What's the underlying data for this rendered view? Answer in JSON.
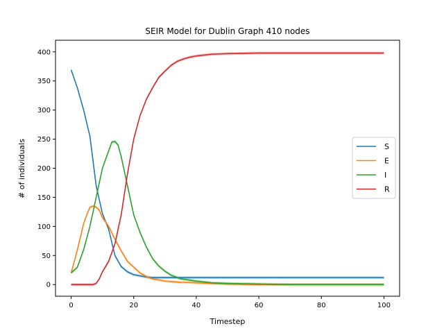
{
  "chart_data": {
    "type": "line",
    "title": "SEIR Model for Dublin Graph 410 nodes",
    "xlabel": "Timestep",
    "ylabel": "# of individuals",
    "xlim": [
      -5,
      105
    ],
    "ylim": [
      -20,
      420
    ],
    "xticks": [
      0,
      20,
      40,
      60,
      80,
      100
    ],
    "yticks": [
      0,
      50,
      100,
      150,
      200,
      250,
      300,
      350,
      400
    ],
    "grid": false,
    "legend_position": "center-right",
    "series": [
      {
        "name": "S",
        "color": "#1f77b4",
        "points": [
          [
            0,
            369
          ],
          [
            2,
            338
          ],
          [
            4,
            300
          ],
          [
            6,
            255
          ],
          [
            8,
            170
          ],
          [
            10,
            122
          ],
          [
            12,
            95
          ],
          [
            14,
            50
          ],
          [
            16,
            31
          ],
          [
            18,
            22
          ],
          [
            20,
            17
          ],
          [
            22,
            15
          ],
          [
            24,
            13
          ],
          [
            26,
            12
          ],
          [
            30,
            12
          ],
          [
            40,
            12
          ],
          [
            50,
            12
          ],
          [
            60,
            12
          ],
          [
            70,
            12
          ],
          [
            80,
            12
          ],
          [
            90,
            12
          ],
          [
            100,
            12
          ]
        ]
      },
      {
        "name": "E",
        "color": "#ff7f0e",
        "points": [
          [
            0,
            20
          ],
          [
            2,
            60
          ],
          [
            4,
            105
          ],
          [
            5,
            120
          ],
          [
            6,
            133
          ],
          [
            7,
            135
          ],
          [
            8,
            133
          ],
          [
            9,
            128
          ],
          [
            10,
            115
          ],
          [
            12,
            100
          ],
          [
            14,
            78
          ],
          [
            16,
            58
          ],
          [
            18,
            40
          ],
          [
            20,
            30
          ],
          [
            22,
            20
          ],
          [
            24,
            14
          ],
          [
            26,
            10
          ],
          [
            28,
            8
          ],
          [
            30,
            6
          ],
          [
            35,
            4
          ],
          [
            40,
            3
          ],
          [
            45,
            2
          ],
          [
            50,
            1
          ],
          [
            60,
            0
          ],
          [
            80,
            0
          ],
          [
            100,
            0
          ]
        ]
      },
      {
        "name": "I",
        "color": "#2ca02c",
        "points": [
          [
            0,
            20
          ],
          [
            2,
            30
          ],
          [
            4,
            60
          ],
          [
            6,
            100
          ],
          [
            8,
            150
          ],
          [
            10,
            200
          ],
          [
            12,
            230
          ],
          [
            13,
            245
          ],
          [
            14,
            246
          ],
          [
            15,
            240
          ],
          [
            16,
            220
          ],
          [
            18,
            170
          ],
          [
            20,
            120
          ],
          [
            22,
            90
          ],
          [
            24,
            65
          ],
          [
            26,
            45
          ],
          [
            28,
            32
          ],
          [
            30,
            23
          ],
          [
            32,
            16
          ],
          [
            35,
            10
          ],
          [
            40,
            6
          ],
          [
            45,
            3
          ],
          [
            50,
            2
          ],
          [
            60,
            1
          ],
          [
            70,
            0
          ],
          [
            80,
            0
          ],
          [
            90,
            0
          ],
          [
            100,
            0
          ]
        ]
      },
      {
        "name": "R",
        "color": "#d62728",
        "points": [
          [
            0,
            0
          ],
          [
            4,
            0
          ],
          [
            6,
            0
          ],
          [
            7,
            0
          ],
          [
            8,
            2
          ],
          [
            9,
            10
          ],
          [
            10,
            22
          ],
          [
            12,
            40
          ],
          [
            14,
            70
          ],
          [
            16,
            120
          ],
          [
            18,
            190
          ],
          [
            20,
            250
          ],
          [
            22,
            290
          ],
          [
            24,
            318
          ],
          [
            26,
            338
          ],
          [
            28,
            356
          ],
          [
            30,
            367
          ],
          [
            32,
            377
          ],
          [
            34,
            384
          ],
          [
            36,
            388
          ],
          [
            38,
            391
          ],
          [
            40,
            393
          ],
          [
            45,
            396
          ],
          [
            50,
            397
          ],
          [
            60,
            398
          ],
          [
            80,
            398
          ],
          [
            100,
            398
          ]
        ]
      }
    ]
  }
}
